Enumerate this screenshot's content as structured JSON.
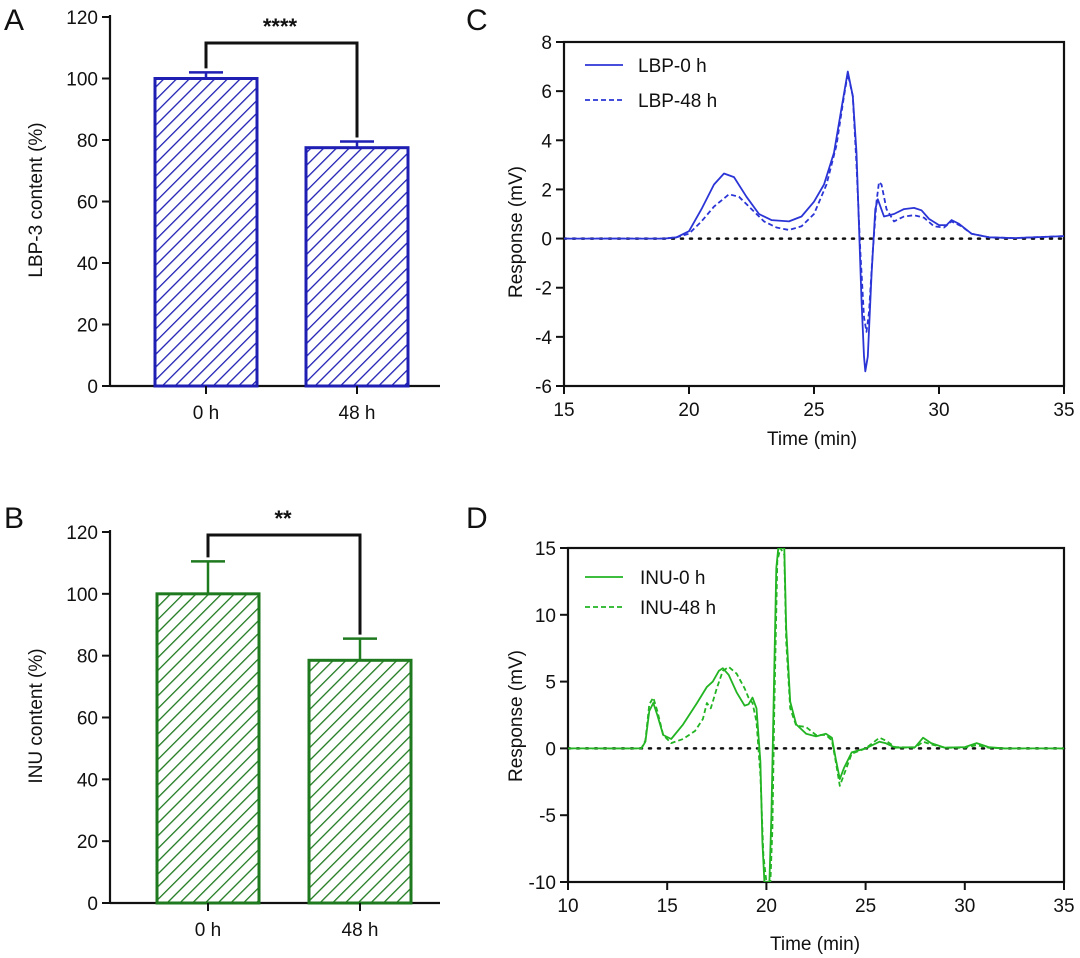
{
  "colors": {
    "blue": "#1f1fb4",
    "blue_line": "#2b35d6",
    "green": "#1f7a1f",
    "green_line": "#22b422",
    "axis": "#111111"
  },
  "chart_data": [
    {
      "panel": "A",
      "type": "bar",
      "categories": [
        "0 h",
        "48 h"
      ],
      "values": [
        100,
        77.5
      ],
      "errors": [
        2,
        2
      ],
      "ylabel": "LBP-3 content (%)",
      "ylim": [
        0,
        120
      ],
      "yticks": [
        "0",
        "20",
        "40",
        "60",
        "80",
        "100",
        "120"
      ],
      "significance": "****",
      "fill": "hatched",
      "color": "blue"
    },
    {
      "panel": "B",
      "type": "bar",
      "categories": [
        "0 h",
        "48 h"
      ],
      "values": [
        100,
        78.5
      ],
      "errors": [
        10.5,
        7
      ],
      "ylabel": "INU content (%)",
      "ylim": [
        0,
        120
      ],
      "yticks": [
        "0",
        "20",
        "40",
        "60",
        "80",
        "100",
        "120"
      ],
      "significance": "**",
      "fill": "hatched",
      "color": "green"
    },
    {
      "panel": "C",
      "type": "line",
      "xlabel": "Time (min)",
      "ylabel": "Response (mV)",
      "xlim": [
        15,
        35
      ],
      "ylim": [
        -6,
        8
      ],
      "xticks": [
        "15",
        "20",
        "25",
        "30",
        "35"
      ],
      "yticks": [
        "-6",
        "-4",
        "-2",
        "0",
        "2",
        "4",
        "6",
        "8"
      ],
      "baseline": 0,
      "color": "blue_line",
      "series": [
        {
          "name": "LBP-0 h",
          "style": "solid",
          "points": [
            [
              15,
              0
            ],
            [
              19,
              0
            ],
            [
              19.5,
              0.05
            ],
            [
              20,
              0.3
            ],
            [
              20.5,
              1.2
            ],
            [
              21,
              2.2
            ],
            [
              21.4,
              2.65
            ],
            [
              21.8,
              2.5
            ],
            [
              22.3,
              1.7
            ],
            [
              22.8,
              1.0
            ],
            [
              23.3,
              0.75
            ],
            [
              24,
              0.7
            ],
            [
              24.5,
              0.9
            ],
            [
              25,
              1.5
            ],
            [
              25.4,
              2.2
            ],
            [
              25.8,
              3.5
            ],
            [
              26.1,
              5.3
            ],
            [
              26.35,
              6.8
            ],
            [
              26.55,
              5.8
            ],
            [
              26.7,
              3.5
            ],
            [
              26.8,
              0.5
            ],
            [
              26.9,
              -2.5
            ],
            [
              27,
              -4.8
            ],
            [
              27.05,
              -5.4
            ],
            [
              27.15,
              -4.8
            ],
            [
              27.3,
              -1.5
            ],
            [
              27.45,
              1.2
            ],
            [
              27.55,
              1.6
            ],
            [
              27.8,
              0.9
            ],
            [
              28.2,
              1.0
            ],
            [
              28.6,
              1.2
            ],
            [
              29,
              1.25
            ],
            [
              29.3,
              1.15
            ],
            [
              29.6,
              0.8
            ],
            [
              30,
              0.55
            ],
            [
              30.3,
              0.55
            ],
            [
              30.5,
              0.75
            ],
            [
              30.8,
              0.6
            ],
            [
              31.3,
              0.2
            ],
            [
              32,
              0.05
            ],
            [
              33,
              0.02
            ],
            [
              35,
              0.1
            ]
          ]
        },
        {
          "name": "LBP-48 h",
          "style": "dashed",
          "points": [
            [
              15,
              0
            ],
            [
              19,
              0
            ],
            [
              19.5,
              0.05
            ],
            [
              20,
              0.2
            ],
            [
              20.5,
              0.7
            ],
            [
              21,
              1.3
            ],
            [
              21.6,
              1.8
            ],
            [
              22,
              1.7
            ],
            [
              22.5,
              1.2
            ],
            [
              23,
              0.7
            ],
            [
              23.5,
              0.45
            ],
            [
              24,
              0.35
            ],
            [
              24.5,
              0.5
            ],
            [
              25,
              1.0
            ],
            [
              25.5,
              2.2
            ],
            [
              25.9,
              3.8
            ],
            [
              26.2,
              5.8
            ],
            [
              26.35,
              6.7
            ],
            [
              26.55,
              5.8
            ],
            [
              26.7,
              3.0
            ],
            [
              26.85,
              -0.5
            ],
            [
              27,
              -3.2
            ],
            [
              27.1,
              -3.8
            ],
            [
              27.2,
              -3.0
            ],
            [
              27.35,
              -0.5
            ],
            [
              27.5,
              1.5
            ],
            [
              27.6,
              2.3
            ],
            [
              27.7,
              2.2
            ],
            [
              27.9,
              1.2
            ],
            [
              28.2,
              0.7
            ],
            [
              28.6,
              0.9
            ],
            [
              29,
              0.95
            ],
            [
              29.4,
              0.85
            ],
            [
              29.8,
              0.5
            ],
            [
              30.2,
              0.45
            ],
            [
              30.5,
              0.7
            ],
            [
              30.9,
              0.5
            ],
            [
              31.3,
              0.2
            ],
            [
              32,
              0.05
            ],
            [
              33,
              0.02
            ],
            [
              35,
              0.1
            ]
          ]
        }
      ]
    },
    {
      "panel": "D",
      "type": "line",
      "xlabel": "Time (min)",
      "ylabel": "Response (mV)",
      "xlim": [
        10,
        35
      ],
      "ylim": [
        -10,
        15
      ],
      "xticks": [
        "10",
        "15",
        "20",
        "25",
        "30",
        "35"
      ],
      "yticks": [
        "-10",
        "-5",
        "0",
        "5",
        "10",
        "15"
      ],
      "baseline": 0,
      "color": "green_line",
      "series": [
        {
          "name": "INU-0 h",
          "style": "solid",
          "points": [
            [
              10,
              0
            ],
            [
              13.7,
              0
            ],
            [
              13.9,
              0.5
            ],
            [
              14.1,
              2.8
            ],
            [
              14.3,
              3.4
            ],
            [
              14.5,
              2.5
            ],
            [
              14.8,
              1.0
            ],
            [
              15.2,
              0.7
            ],
            [
              15.8,
              1.8
            ],
            [
              16.5,
              3.4
            ],
            [
              17,
              4.6
            ],
            [
              17.3,
              5.0
            ],
            [
              17.6,
              5.8
            ],
            [
              17.8,
              6.0
            ],
            [
              18.1,
              5.5
            ],
            [
              18.5,
              4.2
            ],
            [
              18.9,
              3.2
            ],
            [
              19.1,
              3.3
            ],
            [
              19.3,
              3.8
            ],
            [
              19.5,
              3.0
            ],
            [
              19.7,
              -1.0
            ],
            [
              19.8,
              -7.0
            ],
            [
              19.9,
              -10.0
            ],
            [
              20.15,
              -10.0
            ],
            [
              20.25,
              -5.0
            ],
            [
              20.4,
              6.0
            ],
            [
              20.5,
              13.5
            ],
            [
              20.6,
              15.0
            ],
            [
              20.9,
              15.0
            ],
            [
              21.0,
              9.0
            ],
            [
              21.2,
              3.5
            ],
            [
              21.5,
              1.8
            ],
            [
              22,
              1.1
            ],
            [
              22.5,
              0.9
            ],
            [
              23,
              1.1
            ],
            [
              23.3,
              0.8
            ],
            [
              23.5,
              -0.8
            ],
            [
              23.7,
              -2.3
            ],
            [
              23.9,
              -1.5
            ],
            [
              24.3,
              -0.3
            ],
            [
              25,
              0.0
            ],
            [
              25.7,
              0.5
            ],
            [
              26,
              0.4
            ],
            [
              26.5,
              0.05
            ],
            [
              27.5,
              0.1
            ],
            [
              27.9,
              0.8
            ],
            [
              28.3,
              0.4
            ],
            [
              29,
              0.05
            ],
            [
              30,
              0.1
            ],
            [
              30.6,
              0.4
            ],
            [
              31.2,
              0.1
            ],
            [
              32,
              0
            ],
            [
              35,
              0
            ]
          ]
        },
        {
          "name": "INU-48 h",
          "style": "dashed",
          "points": [
            [
              10,
              0
            ],
            [
              13.7,
              0
            ],
            [
              13.9,
              0.6
            ],
            [
              14.1,
              3.3
            ],
            [
              14.3,
              3.8
            ],
            [
              14.5,
              2.8
            ],
            [
              14.8,
              1.0
            ],
            [
              15.2,
              0.4
            ],
            [
              15.8,
              0.7
            ],
            [
              16.4,
              1.3
            ],
            [
              16.8,
              2.2
            ],
            [
              17,
              3.4
            ],
            [
              17.2,
              3.0
            ],
            [
              17.5,
              4.5
            ],
            [
              17.8,
              5.8
            ],
            [
              18.1,
              6.1
            ],
            [
              18.5,
              5.6
            ],
            [
              18.9,
              4.5
            ],
            [
              19.1,
              3.8
            ],
            [
              19.3,
              3.4
            ],
            [
              19.5,
              2.0
            ],
            [
              19.7,
              -2.0
            ],
            [
              19.85,
              -8.0
            ],
            [
              20,
              -10.0
            ],
            [
              20.2,
              -10.0
            ],
            [
              20.3,
              -6.0
            ],
            [
              20.4,
              3.0
            ],
            [
              20.55,
              14.0
            ],
            [
              20.7,
              15.0
            ],
            [
              20.9,
              14.5
            ],
            [
              21.0,
              8.0
            ],
            [
              21.2,
              3.0
            ],
            [
              21.5,
              1.7
            ],
            [
              22,
              1.6
            ],
            [
              22.5,
              1.0
            ],
            [
              23,
              1.0
            ],
            [
              23.3,
              0.6
            ],
            [
              23.5,
              -1.0
            ],
            [
              23.7,
              -2.8
            ],
            [
              23.9,
              -2.0
            ],
            [
              24.3,
              -0.4
            ],
            [
              25,
              0.0
            ],
            [
              25.7,
              0.8
            ],
            [
              26,
              0.6
            ],
            [
              26.5,
              0.1
            ],
            [
              27.5,
              0.05
            ],
            [
              27.9,
              0.5
            ],
            [
              28.3,
              0.3
            ],
            [
              29,
              0.05
            ],
            [
              30,
              0.05
            ],
            [
              30.6,
              0.25
            ],
            [
              31.2,
              0.05
            ],
            [
              32,
              0
            ],
            [
              35,
              0
            ]
          ]
        }
      ]
    }
  ]
}
